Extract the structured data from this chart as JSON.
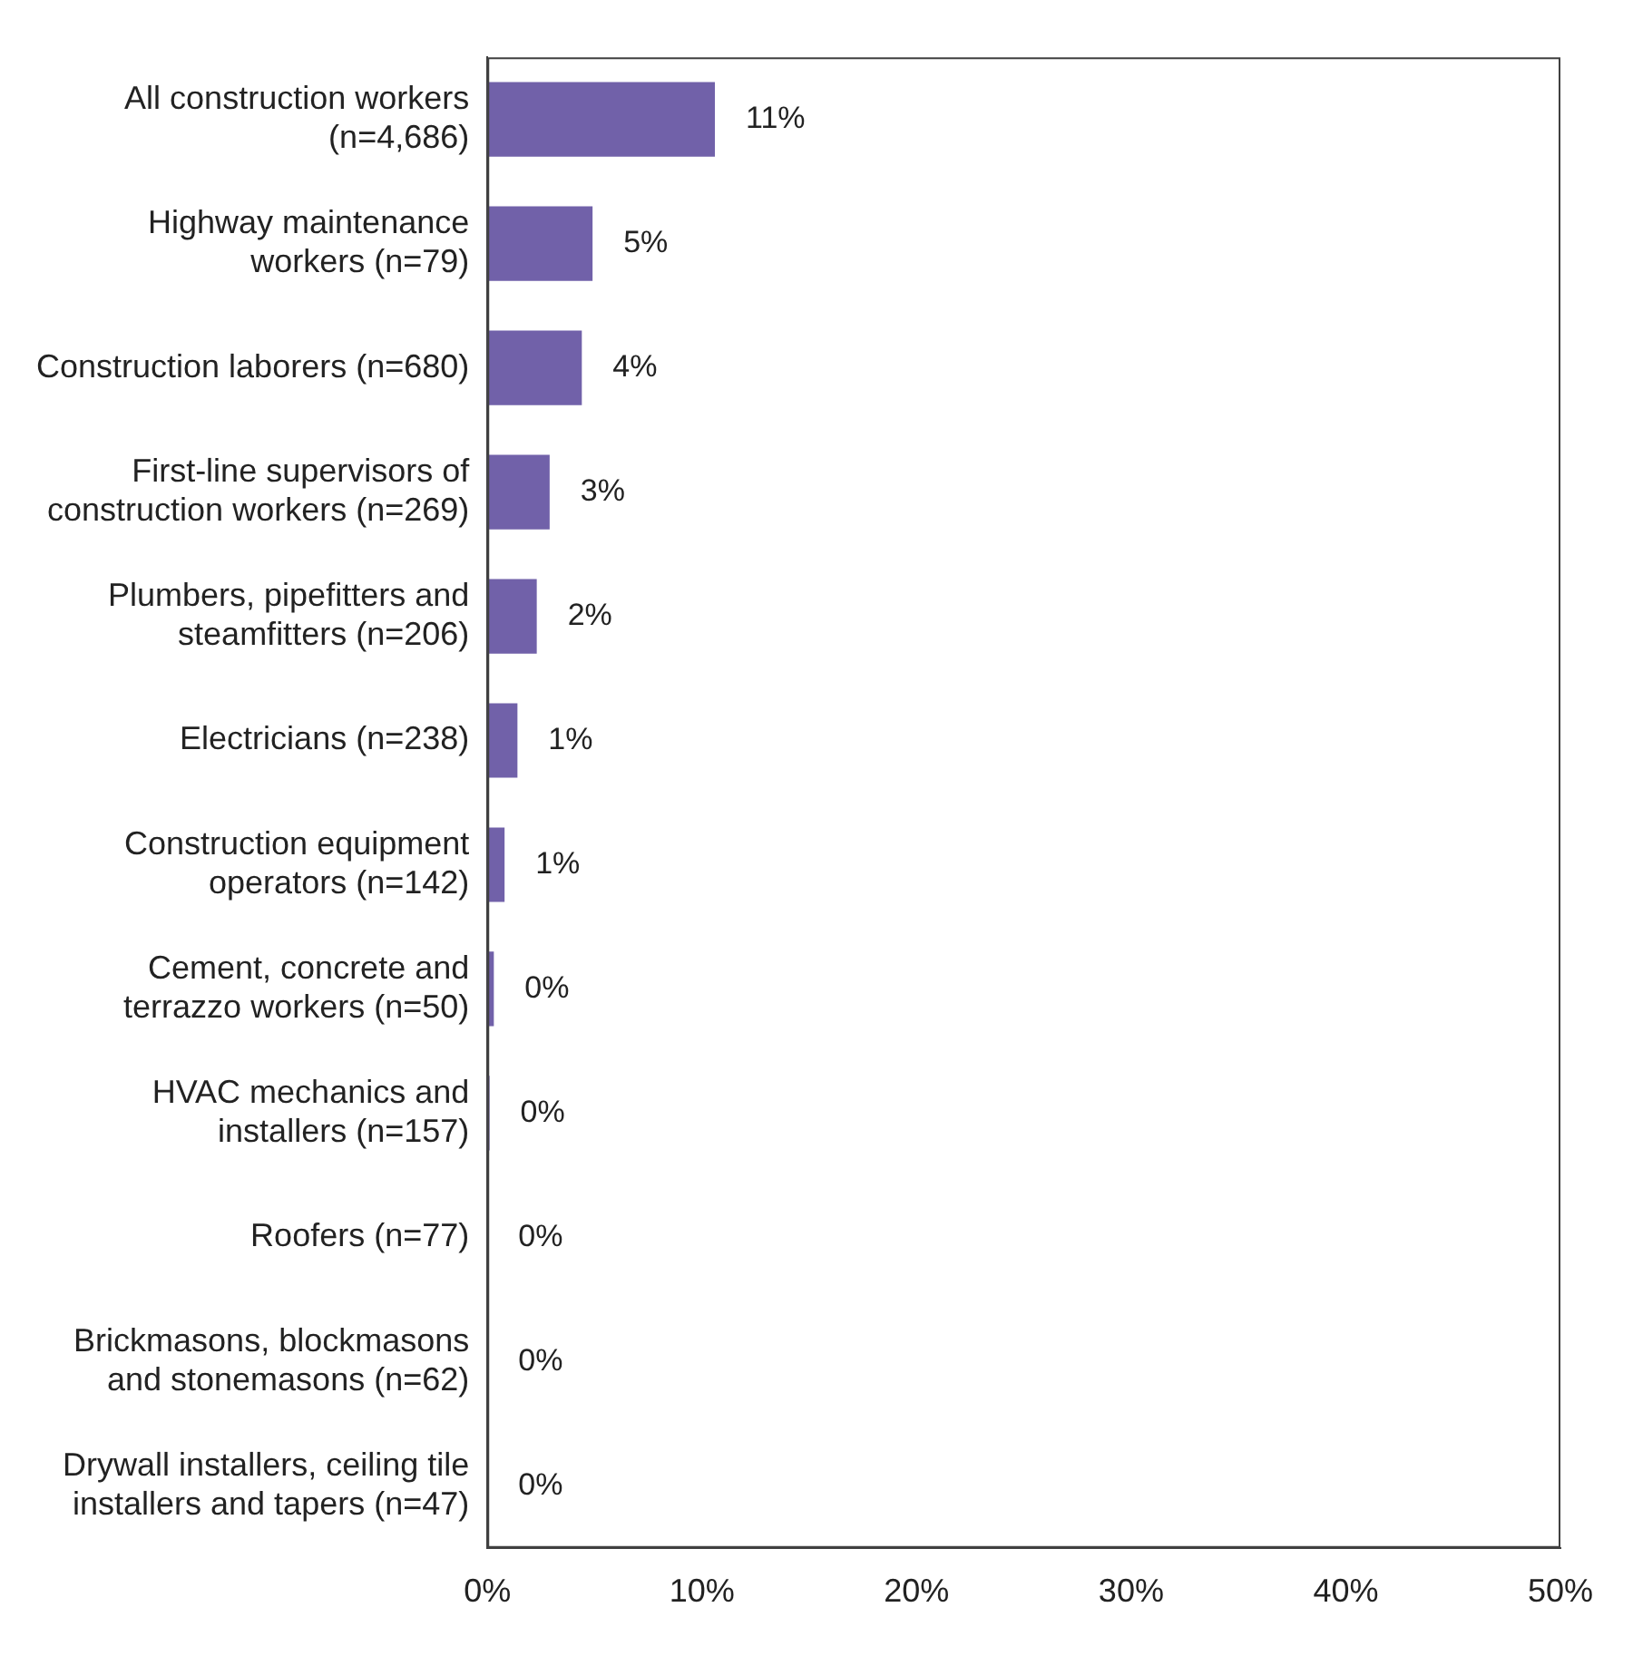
{
  "chart_data": {
    "type": "bar",
    "orientation": "horizontal",
    "categories": [
      "All construction workers (n=4,686)",
      "Highway maintenance workers (n=79)",
      "Construction laborers (n=680)",
      "First-line supervisors of construction workers (n=269)",
      "Plumbers, pipefitters and steamfitters (n=206)",
      "Electricians (n=238)",
      "Construction equipment operators (n=142)",
      "Cement, concrete and terrazzo workers (n=50)",
      "HVAC mechanics and installers (n=157)",
      "Roofers (n=77)",
      "Brickmasons, blockmasons and stonemasons (n=62)",
      "Drywall installers, ceiling tile installers and tapers (n=47)"
    ],
    "values": [
      10.6,
      4.9,
      4.4,
      2.9,
      2.3,
      1.4,
      0.8,
      0.3,
      0.1,
      0,
      0,
      0
    ],
    "value_labels": [
      "11%",
      "5%",
      "4%",
      "3%",
      "2%",
      "1%",
      "1%",
      "0%",
      "0%",
      "0%",
      "0%",
      "0%"
    ],
    "color": "#7161a9",
    "xlim": [
      0,
      50
    ],
    "xticks": [
      {
        "value": 0,
        "label": "0%"
      },
      {
        "value": 10,
        "label": "10%"
      },
      {
        "value": 20,
        "label": "20%"
      },
      {
        "value": 30,
        "label": "30%"
      },
      {
        "value": 40,
        "label": "40%"
      },
      {
        "value": 50,
        "label": "50%"
      }
    ],
    "grid": false,
    "legend": false
  }
}
